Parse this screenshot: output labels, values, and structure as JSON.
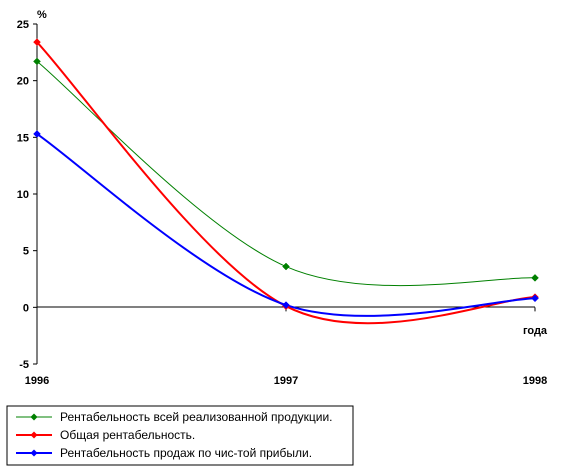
{
  "chart_data": {
    "type": "line",
    "ylabel": "%",
    "xlabel": "года",
    "x": [
      "1996",
      "1997",
      "1998"
    ],
    "ylim": [
      -5,
      25
    ],
    "yticks": [
      -5,
      0,
      5,
      10,
      15,
      20,
      25
    ],
    "series": [
      {
        "name": "Рентабельность всей реализованной продукции.",
        "color": "#008000",
        "values": [
          21.7,
          3.6,
          2.6
        ]
      },
      {
        "name": "Общая рентабельность.",
        "color": "#ff0000",
        "values": [
          23.4,
          0.1,
          0.9
        ]
      },
      {
        "name": "Рентабельность продаж по чис-той прибыли.",
        "color": "#0000ff",
        "values": [
          15.3,
          0.2,
          0.8
        ]
      }
    ],
    "legend_position": "bottom-left",
    "grid": false,
    "smooth": true
  }
}
